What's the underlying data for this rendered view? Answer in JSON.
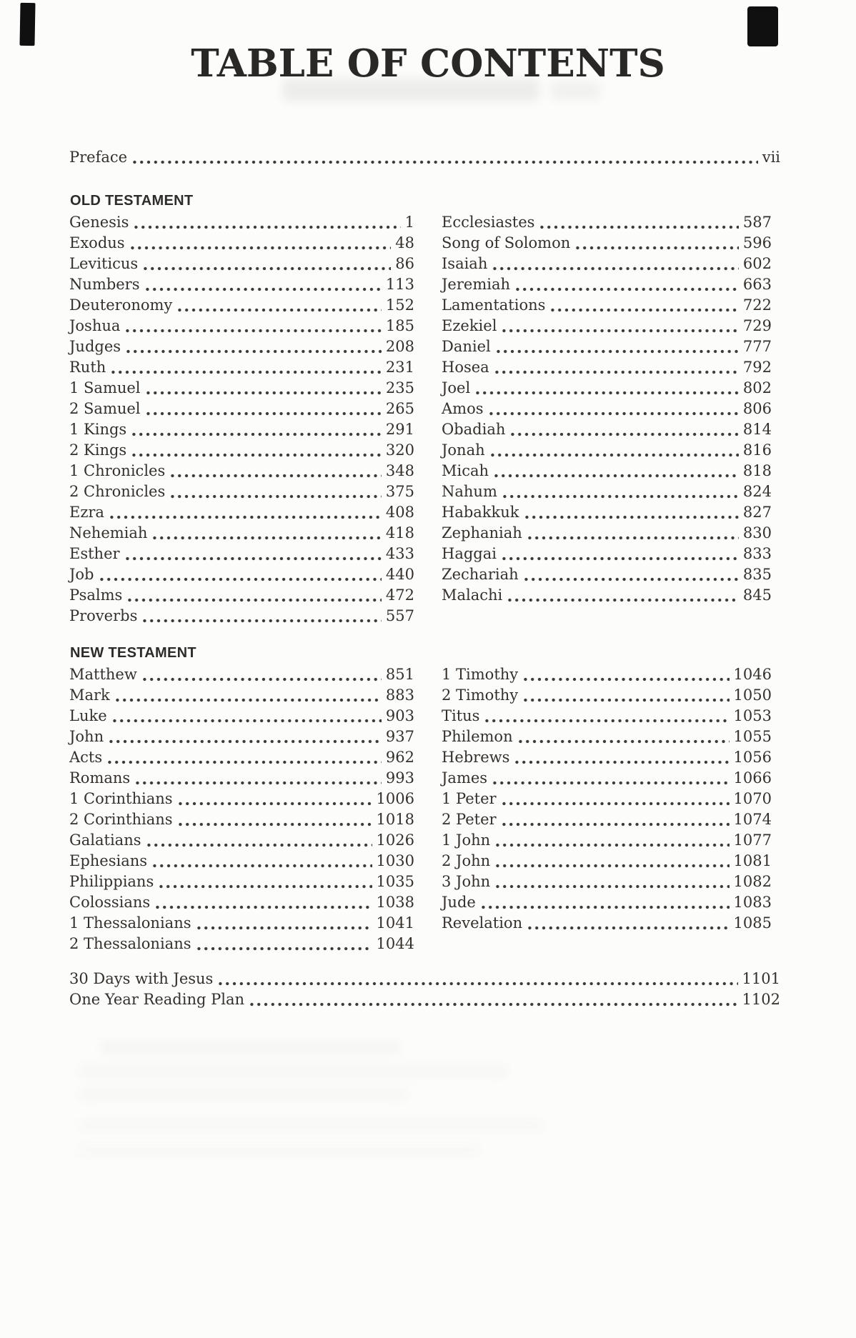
{
  "title": "TABLE OF CONTENTS",
  "preface": [
    {
      "name": "Preface",
      "page": "vii"
    }
  ],
  "sections": [
    {
      "heading": "OLD TESTAMENT",
      "columns": [
        [
          {
            "name": "Genesis",
            "page": "1"
          },
          {
            "name": "Exodus",
            "page": "48"
          },
          {
            "name": "Leviticus",
            "page": "86"
          },
          {
            "name": "Numbers",
            "page": "113"
          },
          {
            "name": "Deuteronomy",
            "page": "152"
          },
          {
            "name": "Joshua",
            "page": "185"
          },
          {
            "name": "Judges",
            "page": "208"
          },
          {
            "name": "Ruth",
            "page": "231"
          },
          {
            "name": "1 Samuel",
            "page": "235"
          },
          {
            "name": "2 Samuel",
            "page": "265"
          },
          {
            "name": "1 Kings",
            "page": "291"
          },
          {
            "name": "2 Kings",
            "page": "320"
          },
          {
            "name": "1 Chronicles",
            "page": "348"
          },
          {
            "name": "2 Chronicles",
            "page": "375"
          },
          {
            "name": "Ezra",
            "page": "408"
          },
          {
            "name": "Nehemiah",
            "page": "418"
          },
          {
            "name": "Esther",
            "page": "433"
          },
          {
            "name": "Job",
            "page": "440"
          },
          {
            "name": "Psalms",
            "page": "472"
          },
          {
            "name": "Proverbs",
            "page": "557"
          }
        ],
        [
          {
            "name": "Ecclesiastes",
            "page": "587"
          },
          {
            "name": "Song of Solomon",
            "page": "596"
          },
          {
            "name": "Isaiah",
            "page": "602"
          },
          {
            "name": "Jeremiah",
            "page": "663"
          },
          {
            "name": "Lamentations",
            "page": "722"
          },
          {
            "name": "Ezekiel",
            "page": "729"
          },
          {
            "name": "Daniel",
            "page": "777"
          },
          {
            "name": "Hosea",
            "page": "792"
          },
          {
            "name": "Joel",
            "page": "802"
          },
          {
            "name": "Amos",
            "page": "806"
          },
          {
            "name": "Obadiah",
            "page": "814"
          },
          {
            "name": "Jonah",
            "page": "816"
          },
          {
            "name": "Micah",
            "page": "818"
          },
          {
            "name": "Nahum",
            "page": "824"
          },
          {
            "name": "Habakkuk",
            "page": "827"
          },
          {
            "name": "Zephaniah",
            "page": "830"
          },
          {
            "name": "Haggai",
            "page": "833"
          },
          {
            "name": "Zechariah",
            "page": "835"
          },
          {
            "name": "Malachi",
            "page": "845"
          }
        ]
      ]
    },
    {
      "heading": "NEW TESTAMENT",
      "columns": [
        [
          {
            "name": "Matthew",
            "page": "851"
          },
          {
            "name": "Mark",
            "page": "883"
          },
          {
            "name": "Luke",
            "page": "903"
          },
          {
            "name": "John",
            "page": "937"
          },
          {
            "name": "Acts",
            "page": "962"
          },
          {
            "name": "Romans",
            "page": "993"
          },
          {
            "name": "1 Corinthians",
            "page": "1006"
          },
          {
            "name": "2 Corinthians",
            "page": "1018"
          },
          {
            "name": "Galatians",
            "page": "1026"
          },
          {
            "name": "Ephesians",
            "page": "1030"
          },
          {
            "name": "Philippians",
            "page": "1035"
          },
          {
            "name": "Colossians",
            "page": "1038"
          },
          {
            "name": "1 Thessalonians",
            "page": "1041"
          },
          {
            "name": "2 Thessalonians",
            "page": "1044"
          }
        ],
        [
          {
            "name": "1 Timothy",
            "page": "1046"
          },
          {
            "name": "2 Timothy",
            "page": "1050"
          },
          {
            "name": "Titus",
            "page": "1053"
          },
          {
            "name": "Philemon",
            "page": "1055"
          },
          {
            "name": "Hebrews",
            "page": "1056"
          },
          {
            "name": "James",
            "page": "1066"
          },
          {
            "name": "1 Peter",
            "page": "1070"
          },
          {
            "name": "2 Peter",
            "page": "1074"
          },
          {
            "name": "1 John",
            "page": "1077"
          },
          {
            "name": "2 John",
            "page": "1081"
          },
          {
            "name": "3 John",
            "page": "1082"
          },
          {
            "name": "Jude",
            "page": "1083"
          },
          {
            "name": "Revelation",
            "page": "1085"
          }
        ]
      ]
    }
  ],
  "extras": [
    {
      "name": "30 Days with Jesus",
      "page": "1101"
    },
    {
      "name": "One Year Reading Plan",
      "page": "1102"
    }
  ],
  "colors": {
    "ink": "#34302b",
    "background": "#fcfcfb"
  }
}
